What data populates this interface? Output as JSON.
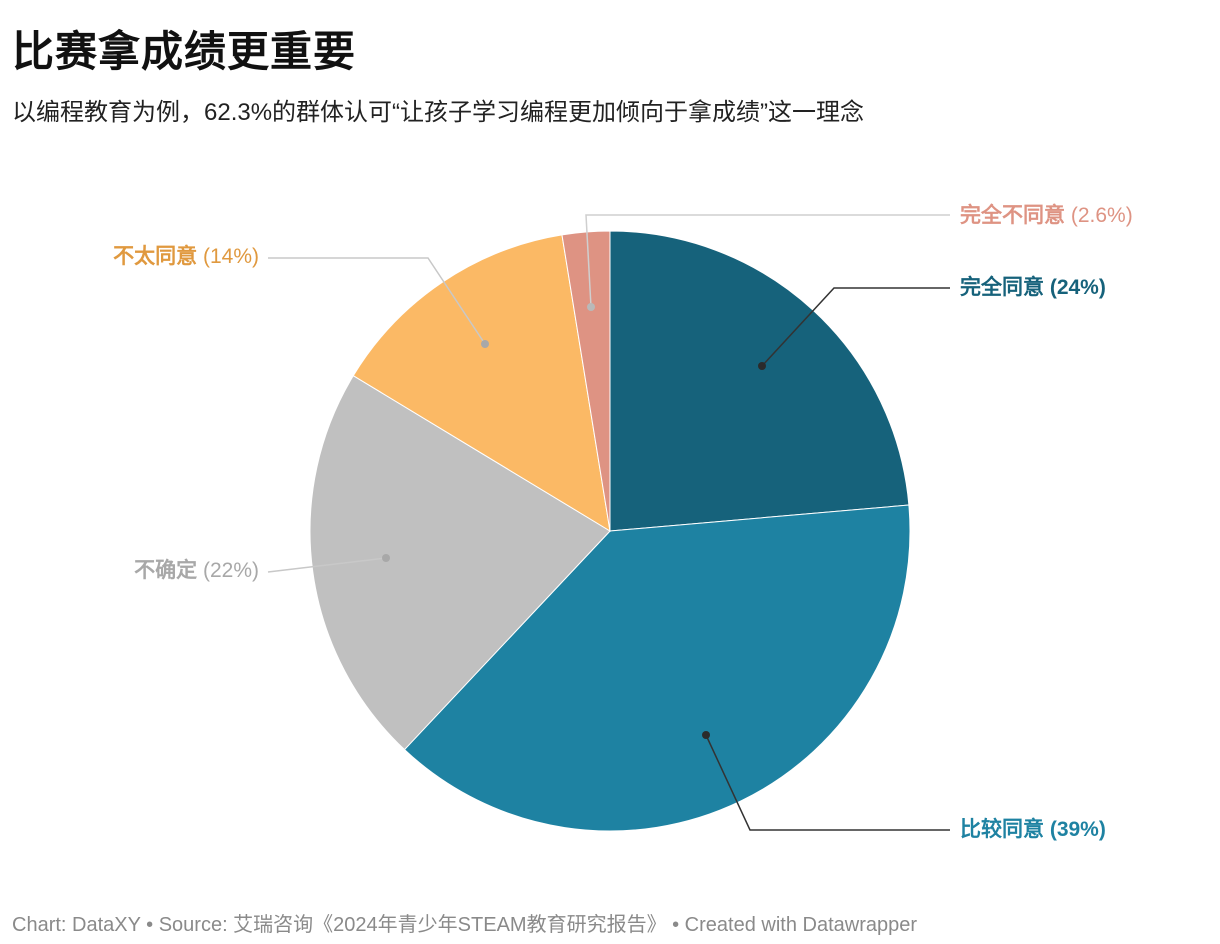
{
  "header": {
    "title": "比赛拿成绩更重要",
    "subtitle": "以编程教育为例，62.3%的群体认可“让孩子学习编程更加倾向于拿成绩”这一理念"
  },
  "chart_data": {
    "type": "pie",
    "title": "比赛拿成绩更重要",
    "subtitle": "以编程教育为例，62.3%的群体认可“让孩子学习编程更加倾向于拿成绩”这一理念",
    "slices": [
      {
        "label": "完全同意",
        "value": 24,
        "display": "(24%)",
        "color": "#16627b",
        "label_color": "#16627b"
      },
      {
        "label": "比较同意",
        "value": 39,
        "display": "(39%)",
        "color": "#1e82a2",
        "label_color": "#1e82a2"
      },
      {
        "label": "不确定",
        "value": 22,
        "display": "(22%)",
        "color": "#c0c0c0",
        "label_color": "#a8a8a8"
      },
      {
        "label": "不太同意",
        "value": 14,
        "display": "(14%)",
        "color": "#fbb965",
        "label_color": "#e0993f"
      },
      {
        "label": "完全不同意",
        "value": 2.6,
        "display": "(2.6%)",
        "color": "#de9383",
        "label_color": "#de9383"
      }
    ],
    "start_angle_deg": 0,
    "direction": "clockwise"
  },
  "footer": {
    "text": "Chart: DataXY • Source: 艾瑞咨询《2024年青少年STEAM教育研究报告》 • Created with Datawrapper"
  }
}
